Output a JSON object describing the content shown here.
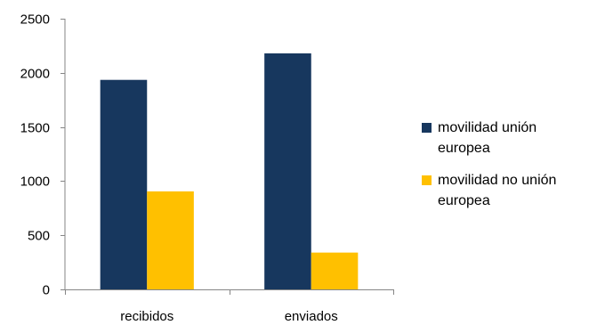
{
  "chart_data": {
    "type": "bar",
    "categories": [
      "recibidos",
      "enviados"
    ],
    "series": [
      {
        "name": "movilidad unión europea",
        "values": [
          1935,
          2180
        ],
        "color": "#17375e"
      },
      {
        "name": "movilidad no unión europea",
        "values": [
          905,
          340
        ],
        "color": "#ffc000"
      }
    ],
    "ylim": [
      0,
      2500
    ],
    "yticks": [
      0,
      500,
      1000,
      1500,
      2000,
      2500
    ],
    "grid": false,
    "legend_position": "right"
  }
}
